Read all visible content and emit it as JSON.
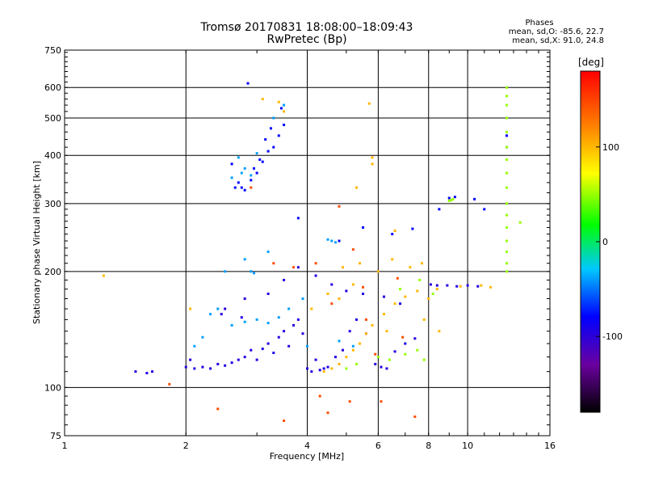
{
  "chart_data": {
    "type": "scatter",
    "title": "Tromsø 20170831 18:08:00–18:09:43",
    "subtitle": "RwPretec (Bp)",
    "xlabel": "Frequency [MHz]",
    "ylabel": "Stationary phase Virtual Height [km]",
    "x_scale": "log",
    "y_scale": "log",
    "xlim": [
      1,
      16
    ],
    "ylim": [
      75,
      750
    ],
    "x_ticks": [
      1,
      2,
      4,
      6,
      8,
      10,
      16
    ],
    "x_tick_labels": [
      "1",
      "2",
      "4",
      "6",
      "8",
      "10",
      "16"
    ],
    "y_ticks": [
      75,
      100,
      200,
      300,
      400,
      500,
      600,
      750
    ],
    "y_tick_labels": [
      "75",
      "100",
      "200",
      "300",
      "400",
      "500",
      "600",
      "750"
    ],
    "grid": true,
    "phases": {
      "heading": "Phases",
      "o_stats": "mean, sd,O:  -85.6, 22.7",
      "x_stats": "mean, sd,X:   91.0, 24.8"
    },
    "colorbar": {
      "unit_label": "[deg]",
      "range": [
        -180,
        180
      ],
      "ticks": [
        100,
        0,
        -100
      ],
      "tick_labels": [
        "100",
        "0",
        "-100"
      ]
    },
    "series": [
      {
        "phase": -95,
        "points": [
          [
            1.5,
            110
          ],
          [
            1.6,
            109
          ],
          [
            1.65,
            110
          ],
          [
            2.0,
            113
          ],
          [
            2.05,
            118
          ],
          [
            2.1,
            112
          ],
          [
            2.2,
            113
          ],
          [
            2.3,
            112
          ],
          [
            2.4,
            115
          ],
          [
            2.5,
            114
          ],
          [
            2.6,
            116
          ],
          [
            2.7,
            118
          ],
          [
            2.8,
            120
          ],
          [
            2.9,
            125
          ],
          [
            3.0,
            118
          ],
          [
            3.1,
            126
          ],
          [
            3.2,
            130
          ],
          [
            3.3,
            123
          ],
          [
            3.4,
            135
          ],
          [
            3.5,
            140
          ],
          [
            3.6,
            128
          ],
          [
            3.7,
            145
          ],
          [
            3.8,
            150
          ],
          [
            3.9,
            138
          ],
          [
            4.0,
            112
          ],
          [
            4.1,
            110
          ],
          [
            4.2,
            118
          ],
          [
            4.3,
            111
          ],
          [
            4.4,
            112
          ],
          [
            4.5,
            113
          ],
          [
            4.7,
            120
          ],
          [
            4.9,
            125
          ],
          [
            5.1,
            140
          ],
          [
            5.3,
            150
          ],
          [
            5.6,
            138
          ],
          [
            5.9,
            115
          ],
          [
            6.1,
            113
          ],
          [
            6.3,
            112
          ],
          [
            6.6,
            124
          ],
          [
            7.0,
            130
          ],
          [
            7.4,
            134
          ],
          [
            8.1,
            185
          ],
          [
            8.4,
            184
          ],
          [
            8.9,
            184
          ],
          [
            9.4,
            183
          ],
          [
            10.0,
            184
          ],
          [
            10.6,
            183
          ],
          [
            2.5,
            160
          ],
          [
            2.8,
            170
          ],
          [
            3.2,
            175
          ],
          [
            3.5,
            190
          ],
          [
            3.8,
            205
          ],
          [
            4.2,
            195
          ],
          [
            4.6,
            185
          ],
          [
            5.0,
            178
          ],
          [
            5.5,
            175
          ],
          [
            6.2,
            172
          ],
          [
            6.8,
            165
          ],
          [
            2.45,
            155
          ],
          [
            2.75,
            152
          ]
        ]
      },
      {
        "phase": -80,
        "points": [
          [
            2.6,
            380
          ],
          [
            2.7,
            340
          ],
          [
            2.75,
            330
          ],
          [
            2.8,
            325
          ],
          [
            2.9,
            345
          ],
          [
            3.0,
            360
          ],
          [
            3.1,
            385
          ],
          [
            3.2,
            410
          ],
          [
            3.3,
            420
          ],
          [
            3.4,
            450
          ],
          [
            3.5,
            480
          ],
          [
            2.85,
            615
          ],
          [
            3.45,
            530
          ],
          [
            3.25,
            470
          ],
          [
            3.05,
            390
          ],
          [
            2.95,
            370
          ],
          [
            2.65,
            330
          ],
          [
            3.15,
            440
          ],
          [
            9.0,
            310
          ],
          [
            9.3,
            312
          ],
          [
            10.4,
            308
          ],
          [
            12.5,
            450
          ],
          [
            12.5,
            420
          ],
          [
            8.5,
            290
          ],
          [
            11.0,
            290
          ],
          [
            3.8,
            275
          ],
          [
            6.5,
            250
          ],
          [
            7.3,
            258
          ],
          [
            4.8,
            240
          ],
          [
            5.5,
            260
          ]
        ]
      },
      {
        "phase": -40,
        "points": [
          [
            2.7,
            395
          ],
          [
            2.8,
            370
          ],
          [
            2.9,
            355
          ],
          [
            2.75,
            360
          ],
          [
            2.6,
            350
          ],
          [
            3.0,
            405
          ],
          [
            3.3,
            500
          ],
          [
            3.5,
            540
          ],
          [
            2.8,
            215
          ],
          [
            2.9,
            200
          ],
          [
            2.95,
            198
          ],
          [
            3.2,
            225
          ],
          [
            2.5,
            200
          ],
          [
            4.5,
            242
          ],
          [
            4.6,
            240
          ],
          [
            4.7,
            238
          ],
          [
            2.6,
            145
          ],
          [
            2.8,
            148
          ],
          [
            3.0,
            150
          ],
          [
            3.2,
            147
          ],
          [
            3.4,
            152
          ],
          [
            2.4,
            160
          ],
          [
            2.3,
            155
          ],
          [
            4.0,
            128
          ],
          [
            4.8,
            132
          ],
          [
            5.2,
            128
          ],
          [
            2.2,
            135
          ],
          [
            2.1,
            128
          ],
          [
            3.6,
            160
          ],
          [
            3.9,
            170
          ]
        ]
      },
      {
        "phase": 50,
        "points": [
          [
            12.5,
            600
          ],
          [
            12.5,
            570
          ],
          [
            12.5,
            540
          ],
          [
            12.5,
            500
          ],
          [
            12.5,
            460
          ],
          [
            12.5,
            420
          ],
          [
            12.5,
            390
          ],
          [
            12.5,
            360
          ],
          [
            12.5,
            330
          ],
          [
            12.5,
            300
          ],
          [
            12.5,
            280
          ],
          [
            12.5,
            260
          ],
          [
            12.5,
            240
          ],
          [
            12.5,
            225
          ],
          [
            12.5,
            210
          ],
          [
            12.5,
            200
          ],
          [
            9.0,
            305
          ],
          [
            9.2,
            308
          ],
          [
            9.1,
            306
          ],
          [
            6.0,
            120
          ],
          [
            6.4,
            118
          ],
          [
            7.0,
            122
          ],
          [
            7.5,
            125
          ],
          [
            7.8,
            118
          ],
          [
            5.0,
            112
          ],
          [
            5.3,
            115
          ],
          [
            6.8,
            180
          ],
          [
            7.6,
            190
          ],
          [
            8.2,
            175
          ],
          [
            13.5,
            268
          ]
        ]
      },
      {
        "phase": 100,
        "points": [
          [
            4.4,
            110
          ],
          [
            4.6,
            112
          ],
          [
            4.8,
            115
          ],
          [
            5.0,
            120
          ],
          [
            5.2,
            125
          ],
          [
            5.4,
            130
          ],
          [
            5.6,
            138
          ],
          [
            5.8,
            145
          ],
          [
            6.2,
            155
          ],
          [
            6.6,
            165
          ],
          [
            7.0,
            172
          ],
          [
            7.5,
            178
          ],
          [
            8.0,
            170
          ],
          [
            8.4,
            180
          ],
          [
            9.6,
            183
          ],
          [
            10.8,
            184
          ],
          [
            11.4,
            182
          ],
          [
            5.8,
            395
          ],
          [
            5.8,
            380
          ],
          [
            5.3,
            330
          ],
          [
            5.7,
            545
          ],
          [
            3.4,
            550
          ],
          [
            3.1,
            560
          ],
          [
            4.9,
            205
          ],
          [
            5.4,
            210
          ],
          [
            6.0,
            200
          ],
          [
            6.5,
            215
          ],
          [
            7.2,
            205
          ],
          [
            4.8,
            170
          ],
          [
            5.2,
            185
          ],
          [
            6.3,
            140
          ],
          [
            7.8,
            150
          ],
          [
            8.5,
            140
          ],
          [
            4.1,
            160
          ],
          [
            4.5,
            175
          ],
          [
            1.25,
            195
          ],
          [
            3.5,
            520
          ],
          [
            6.6,
            255
          ],
          [
            7.7,
            210
          ],
          [
            2.05,
            160
          ]
        ]
      },
      {
        "phase": 145,
        "points": [
          [
            2.9,
            330
          ],
          [
            4.8,
            295
          ],
          [
            5.2,
            228
          ],
          [
            5.1,
            92
          ],
          [
            4.5,
            86
          ],
          [
            5.6,
            150
          ],
          [
            6.9,
            135
          ],
          [
            3.7,
            205
          ],
          [
            4.2,
            210
          ],
          [
            2.4,
            88
          ],
          [
            3.3,
            210
          ],
          [
            4.6,
            165
          ],
          [
            5.5,
            182
          ],
          [
            6.7,
            192
          ],
          [
            4.3,
            95
          ],
          [
            6.1,
            92
          ],
          [
            7.4,
            84
          ],
          [
            3.5,
            82
          ],
          [
            1.82,
            102
          ],
          [
            5.9,
            122
          ]
        ]
      }
    ]
  }
}
